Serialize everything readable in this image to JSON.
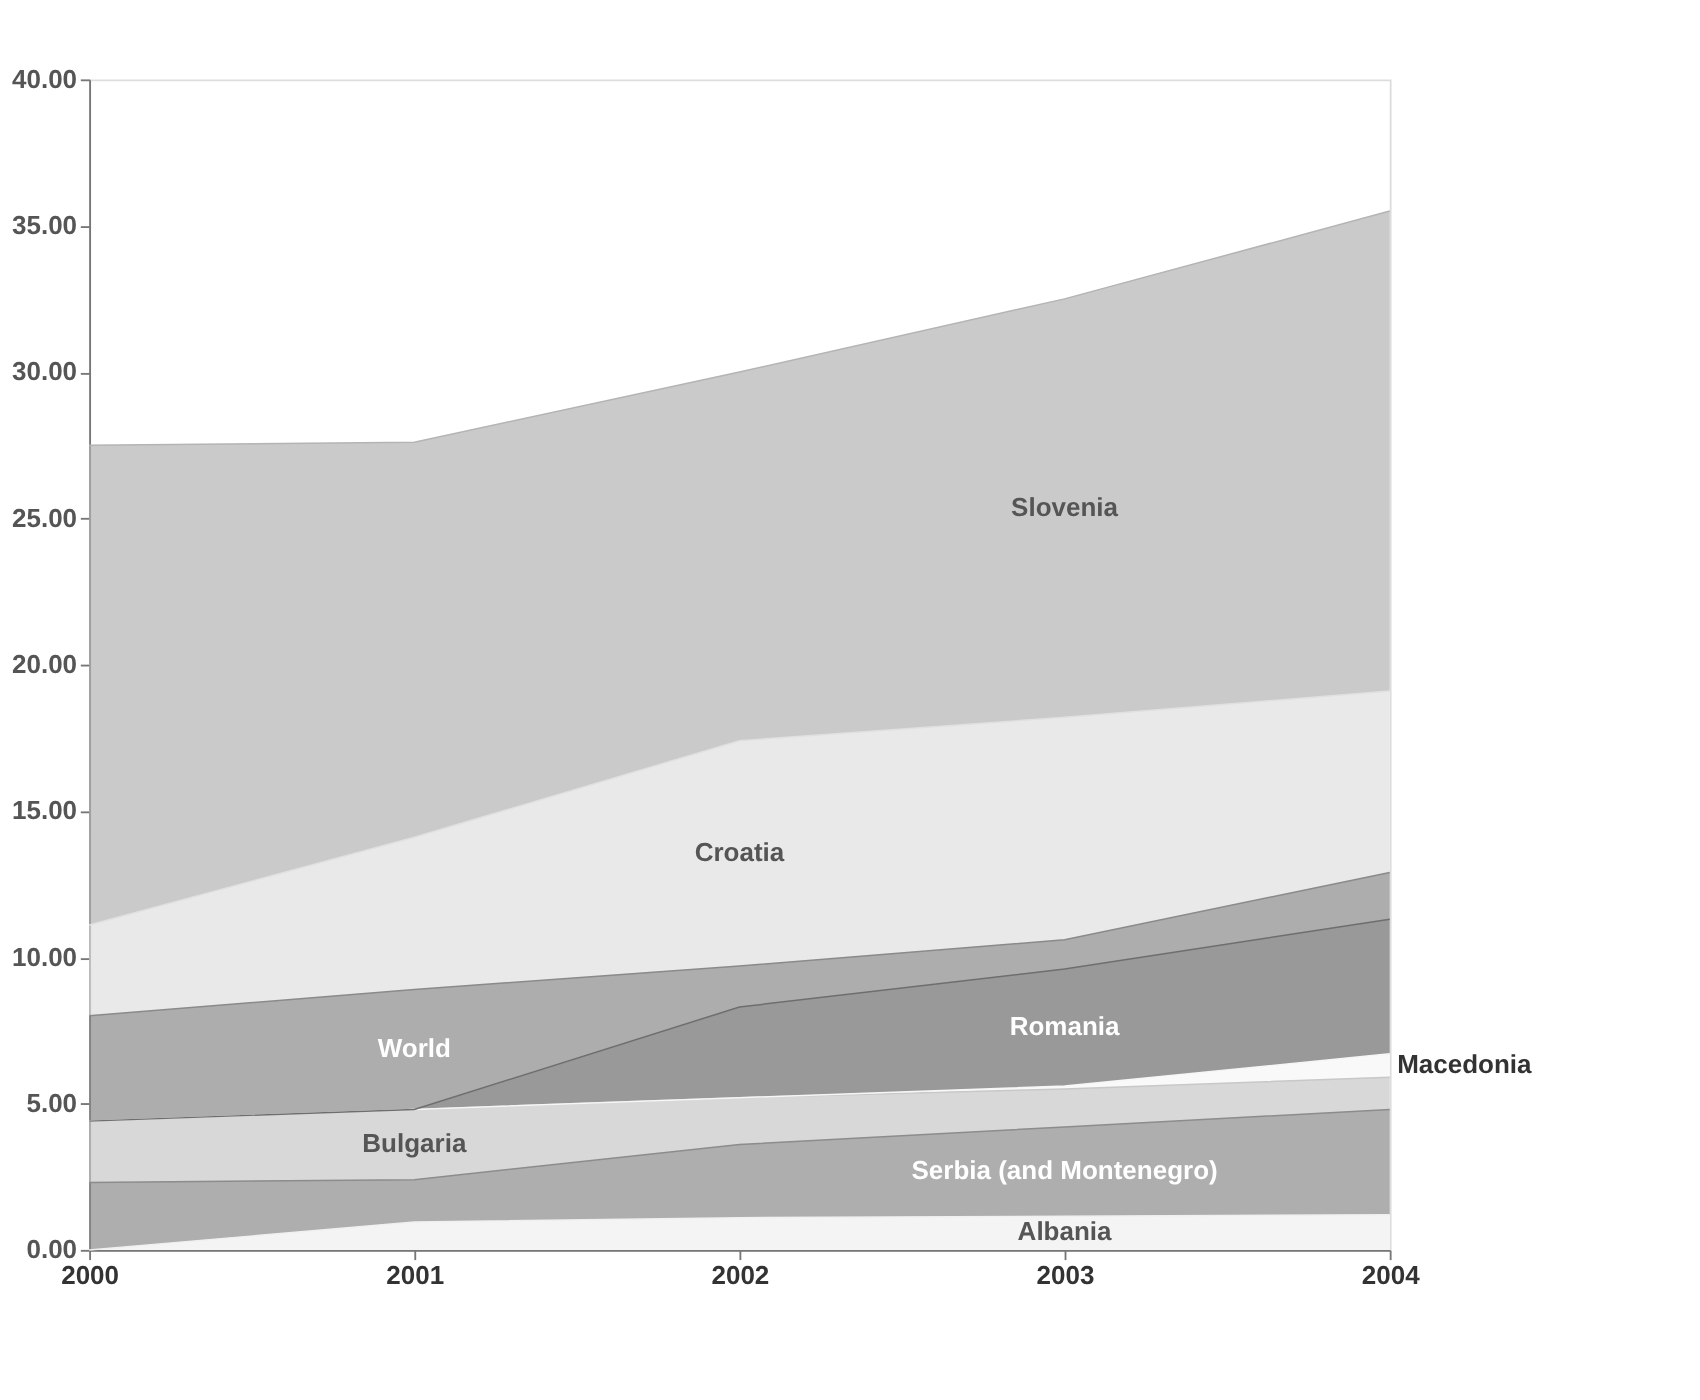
{
  "chart_data": {
    "type": "area",
    "stacked": true,
    "x": [
      2000,
      2001,
      2002,
      2003,
      2004
    ],
    "xlim": [
      2000,
      2004
    ],
    "xticks": [
      2000,
      2001,
      2002,
      2003,
      2004
    ],
    "ylim": [
      0,
      40
    ],
    "yticks": [
      {
        "value": 0,
        "label": "0.00"
      },
      {
        "value": 5,
        "label": "5.00"
      },
      {
        "value": 10,
        "label": "10.00"
      },
      {
        "value": 15,
        "label": "15.00"
      },
      {
        "value": 20,
        "label": "20.00"
      },
      {
        "value": 25,
        "label": "25.00"
      },
      {
        "value": 30,
        "label": "30.00"
      },
      {
        "value": 35,
        "label": "35.00"
      },
      {
        "value": 40,
        "label": "40.00"
      }
    ],
    "grid": false,
    "legend": false,
    "series": [
      {
        "name": "Albania",
        "color": "#f0f0f0",
        "values": [
          0,
          0.95,
          1.1,
          1.15,
          1.2
        ]
      },
      {
        "name": "Serbia (and Montenegro)",
        "color": "#8c8c8c",
        "values": [
          2.3,
          1.45,
          2.5,
          3.05,
          3.6
        ]
      },
      {
        "name": "Bulgaria",
        "color": "#c8c8c8",
        "values": [
          2.1,
          2.4,
          1.6,
          1.3,
          1.1
        ]
      },
      {
        "name": "Macedonia",
        "color": "#f6f6f6",
        "values": [
          0,
          0,
          0,
          0.1,
          0.8
        ]
      },
      {
        "name": "Romania",
        "color": "#6e6e6e",
        "values": [
          0,
          0,
          3.1,
          4.0,
          4.6
        ]
      },
      {
        "name": "World",
        "color": "#8a8a8a",
        "values": [
          3.6,
          4.1,
          1.4,
          1.0,
          1.6
        ]
      },
      {
        "name": "Croatia",
        "color": "#e0e0e0",
        "values": [
          3.1,
          5.2,
          7.7,
          7.6,
          6.2
        ]
      },
      {
        "name": "Slovenia",
        "color": "#b4b4b4",
        "values": [
          16.4,
          13.5,
          12.6,
          14.3,
          16.4
        ]
      }
    ]
  }
}
